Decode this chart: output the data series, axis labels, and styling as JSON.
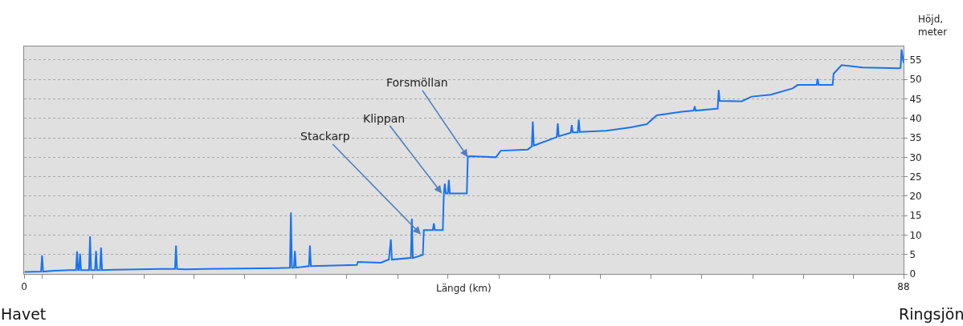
{
  "chart_data": {
    "type": "line",
    "xlabel": "Längd (km)",
    "ylabel": "Höjd,\nmeter",
    "xlim": [
      0,
      88
    ],
    "xticks": [
      0,
      {
        "value": 1.8,
        "label": null
      },
      {
        "value": 6.9,
        "label": null
      },
      {
        "value": 12.0,
        "label": null
      },
      {
        "value": 17.0,
        "label": null
      },
      {
        "value": 22.1,
        "label": null
      },
      {
        "value": 27.2,
        "label": null
      },
      {
        "value": 32.3,
        "label": null
      },
      {
        "value": 37.4,
        "label": null
      },
      {
        "value": 42.4,
        "label": null
      },
      {
        "value": 47.5,
        "label": null
      },
      {
        "value": 52.6,
        "label": null
      },
      {
        "value": 57.7,
        "label": null
      },
      {
        "value": 62.7,
        "label": null
      },
      {
        "value": 67.8,
        "label": null
      },
      {
        "value": 72.9,
        "label": null
      },
      {
        "value": 78.0,
        "label": null
      },
      {
        "value": 83.0,
        "label": null
      },
      88
    ],
    "ylim": [
      0,
      58.5
    ],
    "yticks": [
      0,
      5,
      10,
      15,
      20,
      25,
      30,
      35,
      40,
      45,
      50,
      55
    ],
    "grid": "y",
    "marker": "none",
    "line_style": "solid",
    "series": [
      {
        "color": "#1a73f0",
        "x": [
          0.05,
          1.7,
          1.8,
          1.9,
          3.0,
          4.5,
          5.2,
          5.3,
          5.4,
          5.5,
          5.6,
          5.7,
          6.5,
          6.6,
          6.7,
          7.1,
          7.2,
          7.3,
          7.6,
          7.7,
          7.8,
          9.1,
          13.7,
          15.1,
          15.2,
          15.3,
          16.1,
          25.3,
          26.6,
          26.7,
          26.8,
          27.0,
          27.1,
          27.2,
          28.5,
          28.6,
          28.7,
          33.3,
          33.4,
          35.7,
          36.5,
          36.7,
          36.8,
          38.6,
          38.7,
          38.8,
          38.9,
          39.9,
          40.0,
          40.9,
          41.0,
          41.1,
          41.9,
          42.0,
          42.1,
          42.2,
          42.4,
          42.5,
          42.6,
          44.3,
          44.4,
          44.7,
          47.2,
          47.7,
          50.4,
          50.8,
          50.9,
          51.0,
          53.3,
          53.4,
          53.5,
          54.7,
          54.8,
          54.9,
          55.4,
          55.5,
          55.6,
          58.2,
          60.7,
          62.3,
          63.3,
          65.8,
          67.0,
          67.1,
          67.2,
          69.3,
          69.4,
          69.5,
          69.6,
          71.8,
          72.8,
          74.7,
          76.9,
          77.4,
          79.3,
          79.4,
          79.5,
          80.9,
          81.0,
          81.8,
          83.9,
          87.5,
          87.7,
          87.8,
          88.0
        ],
        "values": [
          0.5,
          0.6,
          4.8,
          0.6,
          0.8,
          1.0,
          1.0,
          5.8,
          1.0,
          1.0,
          5.2,
          1.0,
          1.0,
          9.7,
          1.0,
          1.0,
          5.9,
          1.0,
          1.0,
          6.8,
          1.0,
          1.1,
          1.3,
          1.3,
          7.3,
          1.3,
          1.2,
          1.5,
          1.6,
          15.8,
          1.6,
          1.6,
          5.9,
          1.6,
          2.0,
          7.3,
          2.0,
          2.3,
          3.1,
          2.9,
          3.7,
          8.9,
          3.7,
          4.1,
          4.1,
          14.2,
          4.1,
          4.9,
          11.3,
          11.3,
          13.0,
          11.3,
          11.3,
          20.7,
          23.2,
          20.7,
          20.7,
          24.2,
          20.7,
          20.7,
          30.2,
          30.3,
          30.0,
          31.7,
          32.0,
          32.8,
          39.2,
          33.0,
          35.2,
          38.7,
          35.4,
          36.3,
          38.3,
          36.4,
          36.4,
          39.7,
          36.5,
          36.8,
          37.7,
          38.5,
          40.8,
          41.7,
          42.0,
          43.1,
          42.0,
          42.5,
          42.5,
          47.3,
          44.5,
          44.4,
          45.6,
          46.1,
          47.7,
          48.6,
          48.6,
          50.2,
          48.6,
          48.6,
          51.5,
          53.7,
          53.1,
          52.9,
          53.0,
          57.7,
          54.3
        ]
      }
    ],
    "annotations": [
      {
        "text": "Stackarp",
        "x": 39.7,
        "y": 10.2
      },
      {
        "text": "Klippan",
        "x": 41.8,
        "y": 20.7
      },
      {
        "text": "Forsmöllan",
        "x": 44.4,
        "y": 30.0
      },
      "Havet",
      "Ringsjön"
    ]
  }
}
